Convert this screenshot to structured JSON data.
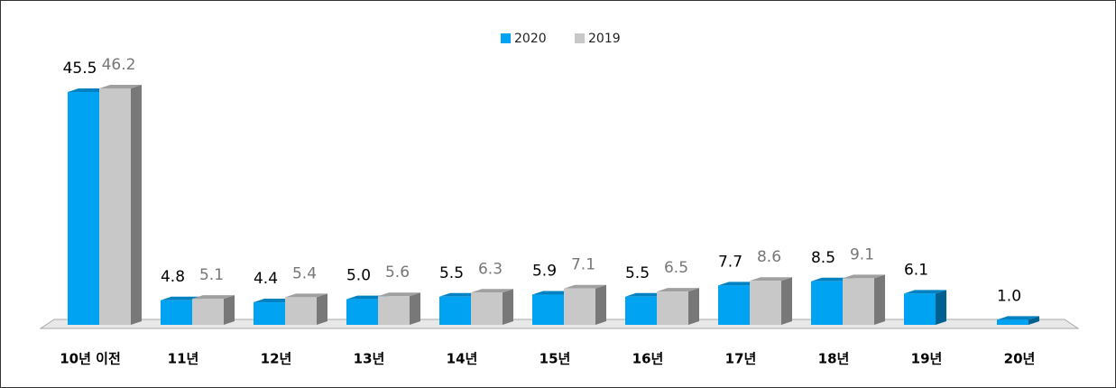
{
  "chart_data": {
    "type": "bar3d",
    "categories": [
      "10년 이전",
      "11년",
      "12년",
      "13년",
      "14년",
      "15년",
      "16년",
      "17년",
      "18년",
      "19년",
      "20년"
    ],
    "series": [
      {
        "name": "2020",
        "color": "#00a2f2",
        "values": [
          45.5,
          4.8,
          4.4,
          5.0,
          5.5,
          5.9,
          5.5,
          7.7,
          8.5,
          6.1,
          1.0
        ],
        "value_labels": [
          "45.5",
          "4.8",
          "4.4",
          "5.0",
          "5.5",
          "5.9",
          "5.5",
          "7.7",
          "8.5",
          "6.1",
          "1.0"
        ]
      },
      {
        "name": "2019",
        "color": "#c8c8c8",
        "values": [
          46.2,
          5.1,
          5.4,
          5.6,
          6.3,
          7.1,
          6.5,
          8.6,
          9.1,
          null,
          null
        ],
        "value_labels": [
          "46.2",
          "5.1",
          "5.4",
          "5.6",
          "6.3",
          "7.1",
          "6.5",
          "8.6",
          "9.1",
          null,
          null
        ]
      }
    ],
    "legend": "top"
  }
}
